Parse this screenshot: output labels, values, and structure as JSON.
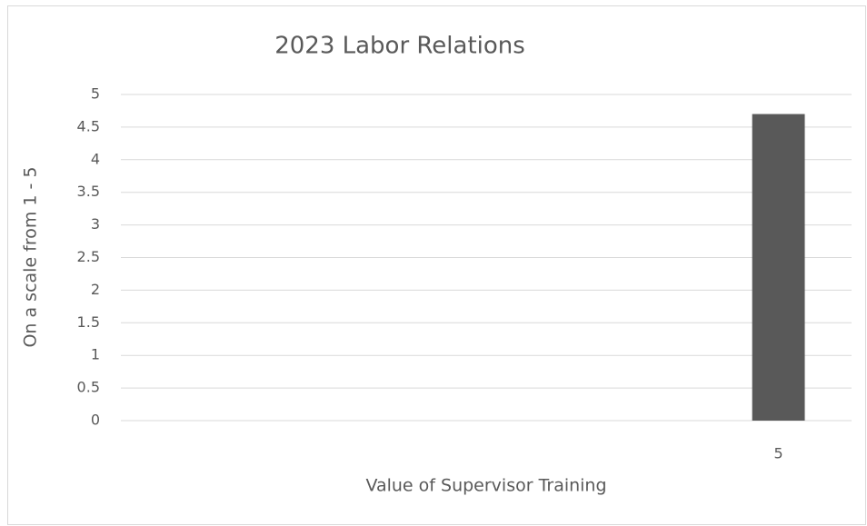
{
  "chart_data": {
    "type": "bar",
    "title": "2023 Labor Relations",
    "x_label": "Value of Supervisor Training",
    "y_label": "On a scale from 1 - 5",
    "categories": [
      null,
      null,
      null,
      null,
      "5"
    ],
    "values": [
      null,
      null,
      null,
      null,
      4.7
    ],
    "color": "#595959",
    "ylim": [
      0,
      5
    ],
    "yticks": [
      0,
      0.5,
      1,
      1.5,
      2,
      2.5,
      3,
      3.5,
      4,
      4.5,
      5
    ],
    "grid": true
  }
}
